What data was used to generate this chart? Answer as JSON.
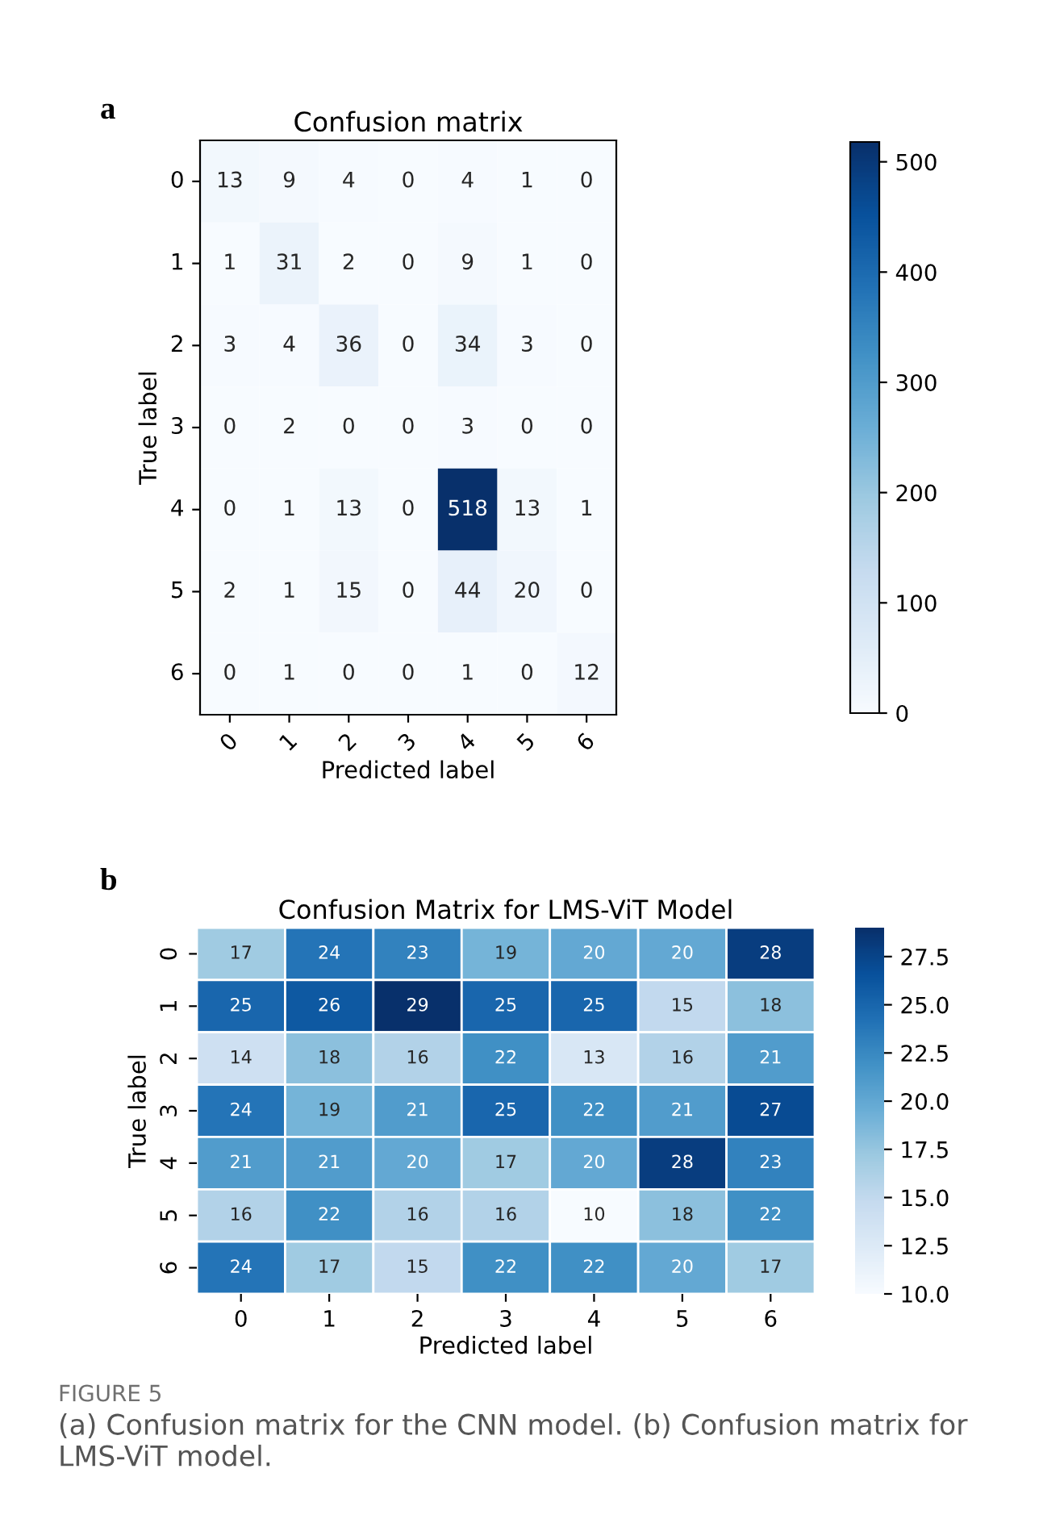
{
  "chart_data": [
    {
      "type": "heatmap",
      "title": "Confusion matrix",
      "xlabel": "Predicted label",
      "ylabel": "True label",
      "categories": [
        "0",
        "1",
        "2",
        "3",
        "4",
        "5",
        "6"
      ],
      "y_categories": [
        "0",
        "1",
        "2",
        "3",
        "4",
        "5",
        "6"
      ],
      "cells": [
        [
          13,
          9,
          4,
          0,
          4,
          1,
          0
        ],
        [
          1,
          31,
          2,
          0,
          9,
          1,
          0
        ],
        [
          3,
          4,
          36,
          0,
          34,
          3,
          0
        ],
        [
          0,
          2,
          0,
          0,
          3,
          0,
          0
        ],
        [
          0,
          1,
          13,
          0,
          518,
          13,
          1
        ],
        [
          2,
          1,
          15,
          0,
          44,
          20,
          0
        ],
        [
          0,
          1,
          0,
          0,
          1,
          0,
          12
        ]
      ],
      "data_labels": true,
      "clim": [
        0,
        518
      ],
      "cticks": [
        0,
        100,
        200,
        300,
        400,
        500
      ],
      "annotations": [
        "a"
      ]
    },
    {
      "type": "heatmap",
      "title": "Confusion Matrix for LMS-ViT Model",
      "xlabel": "Predicted label",
      "ylabel": "True label",
      "categories": [
        "0",
        "1",
        "2",
        "3",
        "4",
        "5",
        "6"
      ],
      "y_categories": [
        "0",
        "1",
        "2",
        "3",
        "4",
        "5",
        "6"
      ],
      "cells": [
        [
          17,
          24,
          23,
          19,
          20,
          20,
          28
        ],
        [
          25,
          26,
          29,
          25,
          25,
          15,
          18
        ],
        [
          14,
          18,
          16,
          22,
          13,
          16,
          21
        ],
        [
          24,
          19,
          21,
          25,
          22,
          21,
          27
        ],
        [
          21,
          21,
          20,
          17,
          20,
          28,
          23
        ],
        [
          16,
          22,
          16,
          16,
          10,
          18,
          22
        ],
        [
          24,
          17,
          15,
          22,
          22,
          20,
          17
        ]
      ],
      "data_labels": true,
      "clim": [
        10,
        29
      ],
      "cticks": [
        {
          "value": 10,
          "label": "10.0"
        },
        {
          "value": 12.5,
          "label": "12.5"
        },
        {
          "value": 15,
          "label": "15.0"
        },
        {
          "value": 17.5,
          "label": "17.5"
        },
        {
          "value": 20,
          "label": "20.0"
        },
        {
          "value": 22.5,
          "label": "22.5"
        },
        {
          "value": 25,
          "label": "25.0"
        },
        {
          "value": 27.5,
          "label": "27.5"
        }
      ],
      "annotations": [
        "b",
        "FIGURE 5",
        "(a) Confusion matrix for the CNN model. (b) Confusion matrix for LMS-ViT model."
      ]
    }
  ]
}
